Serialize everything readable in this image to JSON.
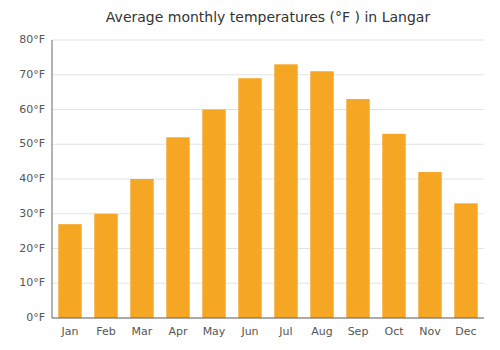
{
  "chart_data": {
    "type": "bar",
    "title": "Average monthly temperatures (°F ) in Langar",
    "categories": [
      "Jan",
      "Feb",
      "Mar",
      "Apr",
      "May",
      "Jun",
      "Jul",
      "Aug",
      "Sep",
      "Oct",
      "Nov",
      "Dec"
    ],
    "values": [
      27,
      30,
      40,
      52,
      60,
      69,
      73,
      71,
      63,
      53,
      42,
      33
    ],
    "color": "#F5A623",
    "ylim": [
      0,
      80
    ],
    "yticks": [
      {
        "value": 0,
        "label": "0°F"
      },
      {
        "value": 10,
        "label": "10°F"
      },
      {
        "value": 20,
        "label": "20°F"
      },
      {
        "value": 30,
        "label": "30°F"
      },
      {
        "value": 40,
        "label": "40°F"
      },
      {
        "value": 50,
        "label": "50°F"
      },
      {
        "value": 60,
        "label": "60°F"
      },
      {
        "value": 70,
        "label": "70°F"
      },
      {
        "value": 80,
        "label": "80°F"
      }
    ],
    "grid": true
  }
}
